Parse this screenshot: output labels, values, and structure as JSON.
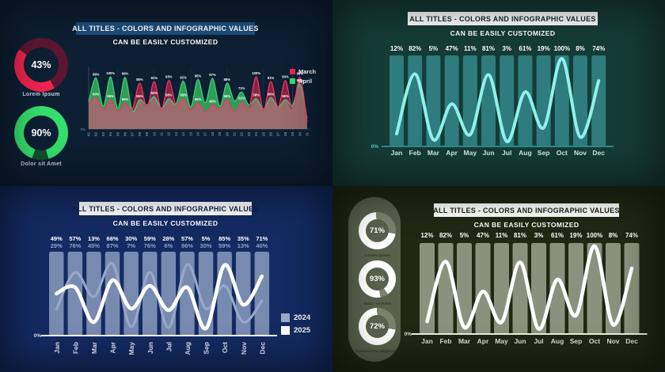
{
  "panels": {
    "top_left": {
      "title": "ALL TITLES - COLORS AND INFOGRAPHIC VALUES",
      "subtitle": "CAN BE EASILY CUSTOMIZED",
      "donuts": [
        {
          "value": "43%",
          "percent": 43,
          "label": "Lorem Ipsum",
          "color": "#ee2450",
          "track": "#5c1630"
        },
        {
          "value": "90%",
          "percent": 90,
          "label": "Dolor sit Amet",
          "color": "#35dd6c",
          "track": "#11512e"
        }
      ],
      "legend": [
        {
          "label": "March",
          "color": "#ee2450"
        },
        {
          "label": "April",
          "color": "#35dd6c"
        }
      ],
      "y_zero_label": "0%"
    },
    "top_right": {
      "title": "ALL TITLES - COLORS AND INFOGRAPHIC VALUES",
      "subtitle": "CAN BE EASILY CUSTOMIZED",
      "y_zero_label": "0%"
    },
    "bottom_left": {
      "title": "ALL TITLES - COLORS AND INFOGRAPHIC VALUES",
      "subtitle": "CAN BE EASILY CUSTOMIZED",
      "legend": [
        {
          "label": "2024",
          "color": "#97a8c8"
        },
        {
          "label": "2025",
          "color": "#ffffff"
        }
      ],
      "y_zero_label": "0%"
    },
    "bottom_right": {
      "title": "ALL TITLES - COLORS AND INFOGRAPHIC VALUES",
      "subtitle": "CAN BE EASILY CUSTOMIZED",
      "donuts": [
        {
          "value": "71%",
          "percent": 71,
          "label": "Lorem Ipsum",
          "color": "#ffffff",
          "track": "#7b826c"
        },
        {
          "value": "93%",
          "percent": 93,
          "label": "Dolor sit Amet",
          "color": "#ffffff",
          "track": "#7b826c"
        },
        {
          "value": "72%",
          "percent": 72,
          "label": "Consectetur adipiscing",
          "color": "#ffffff",
          "track": "#7b826c"
        }
      ],
      "y_zero_label": "0%"
    }
  },
  "chart_data": [
    {
      "panel": "top-left",
      "type": "area",
      "title": "ALL TITLES - COLORS AND INFOGRAPHIC VALUES",
      "subtitle": "CAN BE EASILY CUSTOMIZED",
      "x": [
        "01",
        "02",
        "03",
        "04",
        "05",
        "06",
        "07",
        "08",
        "09",
        "10",
        "11",
        "12",
        "13",
        "14",
        "15",
        "16",
        "17",
        "18",
        "19",
        "20",
        "21",
        "22",
        "23",
        "24",
        "25",
        "26",
        "27",
        "28",
        "29",
        "30",
        "31"
      ],
      "ylim": [
        0,
        100
      ],
      "legend_position": "top-right",
      "overlap_fill": "#a18c86",
      "series": [
        {
          "name": "April",
          "line": "#3ed47b",
          "fill": "#2e9e57",
          "values": [
            52,
            98,
            44,
            100,
            40,
            99,
            34,
            56,
            46,
            62,
            40,
            58,
            48,
            92,
            42,
            95,
            50,
            97,
            44,
            88,
            54,
            71,
            46,
            58,
            38,
            60,
            42,
            56,
            46,
            86,
            20
          ]
        },
        {
          "name": "March",
          "line": "#ff3060",
          "fill": "#a32648",
          "values": [
            48,
            60,
            36,
            56,
            32,
            50,
            38,
            88,
            42,
            91,
            38,
            93,
            46,
            58,
            36,
            50,
            32,
            46,
            38,
            56,
            32,
            52,
            40,
            100,
            36,
            91,
            42,
            93,
            38,
            99,
            14
          ]
        }
      ],
      "y_zero": "0%"
    },
    {
      "panel": "top-right",
      "type": "bar-line",
      "title": "ALL TITLES - COLORS AND INFOGRAPHIC VALUES",
      "subtitle": "CAN BE EASILY CUSTOMIZED",
      "categories": [
        "Jan",
        "Feb",
        "Mar",
        "Apr",
        "May",
        "Jun",
        "Jul",
        "Aug",
        "Sep",
        "Oct",
        "Nov",
        "Dec"
      ],
      "bars_full_height": true,
      "ylim": [
        0,
        100
      ],
      "label_rows": [
        [
          "12%",
          "82%",
          "5%",
          "47%",
          "11%",
          "81%",
          "3%",
          "61%",
          "19%",
          "100%",
          "8%",
          "74%"
        ]
      ],
      "lines": [
        {
          "name": "values",
          "color": "#8ff1ec",
          "width": 4,
          "values": [
            12,
            82,
            5,
            47,
            11,
            81,
            3,
            61,
            19,
            100,
            8,
            74
          ]
        }
      ],
      "y_zero": "0%"
    },
    {
      "panel": "bottom-left",
      "type": "bar-line",
      "title": "ALL TITLES - COLORS AND INFOGRAPHIC VALUES",
      "subtitle": "CAN BE EASILY CUSTOMIZED",
      "categories": [
        "Jan",
        "Feb",
        "Mar",
        "Apr",
        "May",
        "Jun",
        "Jul",
        "Aug",
        "Sep",
        "Oct",
        "Nov",
        "Dec"
      ],
      "bars_full_height": true,
      "ylim": [
        0,
        100
      ],
      "label_rows": [
        [
          "49%",
          "57%",
          "13%",
          "66%",
          "30%",
          "59%",
          "28%",
          "57%",
          "5%",
          "85%",
          "35%",
          "71%"
        ],
        [
          "29%",
          "76%",
          "45%",
          "87%",
          "7%",
          "76%",
          "6%",
          "86%",
          "30%",
          "59%",
          "13%",
          "40%"
        ]
      ],
      "lines": [
        {
          "name": "2024",
          "color": "#97a8c8",
          "width": 3.2,
          "values": [
            29,
            76,
            45,
            87,
            7,
            76,
            6,
            86,
            30,
            59,
            13,
            40
          ]
        },
        {
          "name": "2025",
          "color": "#ffffff",
          "width": 4.6,
          "values": [
            49,
            57,
            13,
            66,
            30,
            59,
            28,
            57,
            5,
            85,
            35,
            71
          ]
        }
      ],
      "y_zero": "0%"
    },
    {
      "panel": "bottom-right",
      "type": "bar-line",
      "title": "ALL TITLES - COLORS AND INFOGRAPHIC VALUES",
      "subtitle": "CAN BE EASILY CUSTOMIZED",
      "categories": [
        "Jan",
        "Feb",
        "Mar",
        "Apr",
        "May",
        "Jun",
        "Jul",
        "Aug",
        "Sep",
        "Oct",
        "Nov",
        "Dec"
      ],
      "bars_full_height": true,
      "ylim": [
        0,
        100
      ],
      "label_rows": [
        [
          "12%",
          "82%",
          "5%",
          "47%",
          "11%",
          "81%",
          "3%",
          "61%",
          "19%",
          "100%",
          "8%",
          "74%"
        ]
      ],
      "lines": [
        {
          "name": "values",
          "color": "#ffffff",
          "width": 4.6,
          "values": [
            12,
            82,
            5,
            47,
            11,
            81,
            3,
            61,
            19,
            100,
            8,
            74
          ]
        }
      ],
      "y_zero": "0%"
    }
  ]
}
